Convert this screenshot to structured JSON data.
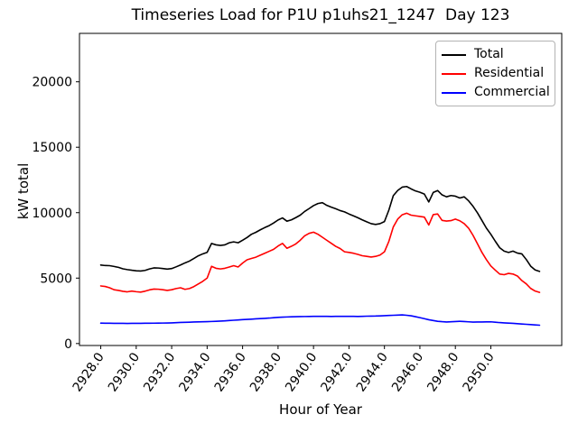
{
  "title": "Timeseries Load for P1U p1uhs21_1247  Day 123",
  "colors": {
    "background": "#ffffff",
    "axis": "#000000",
    "tick_text": "#000000",
    "legend_border": "#b3b3b3",
    "total_line": "#000000",
    "residential_line": "#ff0000",
    "commercial_line": "#0000ff"
  },
  "chart_data": {
    "type": "line",
    "title": "Timeseries Load for P1U p1uhs21_1247  Day 123",
    "xlabel": "Hour of Year",
    "ylabel": "kW total",
    "grid": false,
    "legend_position": "upper right",
    "xlim": [
      2926.8,
      2954.0
    ],
    "ylim": [
      -150,
      23700
    ],
    "xticks": [
      2928,
      2930,
      2932,
      2934,
      2936,
      2938,
      2940,
      2942,
      2944,
      2946,
      2948,
      2950
    ],
    "xtick_labels": [
      "2928.0",
      "2930.0",
      "2932.0",
      "2934.0",
      "2936.0",
      "2938.0",
      "2940.0",
      "2942.0",
      "2944.0",
      "2946.0",
      "2948.0",
      "2950.0"
    ],
    "yticks": [
      0,
      5000,
      10000,
      15000,
      20000
    ],
    "ytick_labels": [
      "0",
      "5000",
      "10000",
      "15000",
      "20000"
    ],
    "xtick_rotation_deg": -55,
    "x": [
      2928.0,
      2928.25,
      2928.5,
      2928.75,
      2929.0,
      2929.25,
      2929.5,
      2929.75,
      2930.0,
      2930.25,
      2930.5,
      2930.75,
      2931.0,
      2931.25,
      2931.5,
      2931.75,
      2932.0,
      2932.25,
      2932.5,
      2932.75,
      2933.0,
      2933.25,
      2933.5,
      2933.75,
      2934.0,
      2934.25,
      2934.5,
      2934.75,
      2935.0,
      2935.25,
      2935.5,
      2935.75,
      2936.0,
      2936.25,
      2936.5,
      2936.75,
      2937.0,
      2937.25,
      2937.5,
      2937.75,
      2938.0,
      2938.25,
      2938.5,
      2938.75,
      2939.0,
      2939.25,
      2939.5,
      2939.75,
      2940.0,
      2940.25,
      2940.5,
      2940.75,
      2941.0,
      2941.25,
      2941.5,
      2941.75,
      2942.0,
      2942.25,
      2942.5,
      2942.75,
      2943.0,
      2943.25,
      2943.5,
      2943.75,
      2944.0,
      2944.25,
      2944.5,
      2944.75,
      2945.0,
      2945.25,
      2945.5,
      2945.75,
      2946.0,
      2946.25,
      2946.5,
      2946.75,
      2947.0,
      2947.25,
      2947.5,
      2947.75,
      2948.0,
      2948.25,
      2948.5,
      2948.75,
      2949.0,
      2949.25,
      2949.5,
      2949.75,
      2950.0,
      2950.25,
      2950.5,
      2950.75,
      2951.0,
      2951.25,
      2951.5,
      2951.75,
      2952.0,
      2952.25,
      2952.5,
      2952.75
    ],
    "series": [
      {
        "name": "Total",
        "color": "#000000",
        "values": [
          6000,
          5960,
          5950,
          5890,
          5820,
          5710,
          5650,
          5600,
          5560,
          5540,
          5590,
          5700,
          5780,
          5770,
          5730,
          5690,
          5730,
          5860,
          6000,
          6160,
          6300,
          6500,
          6700,
          6850,
          6970,
          7650,
          7540,
          7500,
          7540,
          7700,
          7770,
          7700,
          7890,
          8100,
          8350,
          8500,
          8690,
          8860,
          9010,
          9210,
          9440,
          9600,
          9350,
          9450,
          9620,
          9810,
          10090,
          10310,
          10540,
          10700,
          10760,
          10560,
          10420,
          10300,
          10160,
          10060,
          9900,
          9760,
          9610,
          9450,
          9300,
          9160,
          9100,
          9160,
          9320,
          10200,
          11300,
          11700,
          11950,
          12000,
          11820,
          11660,
          11560,
          11420,
          10820,
          11540,
          11690,
          11360,
          11210,
          11310,
          11260,
          11120,
          11210,
          10900,
          10480,
          9980,
          9400,
          8820,
          8350,
          7820,
          7320,
          7060,
          6960,
          7060,
          6910,
          6850,
          6420,
          5910,
          5620,
          5510
        ]
      },
      {
        "name": "Residential",
        "color": "#ff0000",
        "values": [
          4400,
          4360,
          4260,
          4110,
          4060,
          3990,
          3950,
          4010,
          3960,
          3930,
          4000,
          4100,
          4160,
          4150,
          4110,
          4060,
          4110,
          4200,
          4260,
          4140,
          4200,
          4350,
          4550,
          4750,
          5000,
          5900,
          5750,
          5700,
          5750,
          5850,
          5950,
          5850,
          6150,
          6400,
          6500,
          6600,
          6750,
          6900,
          7050,
          7200,
          7450,
          7650,
          7280,
          7430,
          7610,
          7890,
          8230,
          8420,
          8510,
          8350,
          8120,
          7890,
          7660,
          7430,
          7260,
          7010,
          6960,
          6900,
          6810,
          6710,
          6660,
          6610,
          6660,
          6760,
          7010,
          7810,
          8910,
          9510,
          9840,
          9960,
          9810,
          9760,
          9710,
          9660,
          9060,
          9850,
          9900,
          9410,
          9360,
          9390,
          9510,
          9380,
          9160,
          8810,
          8260,
          7610,
          6960,
          6410,
          5930,
          5610,
          5310,
          5260,
          5360,
          5310,
          5160,
          4810,
          4560,
          4210,
          4010,
          3910
        ]
      },
      {
        "name": "Commercial",
        "color": "#0000ff",
        "values": [
          1560,
          1550,
          1550,
          1545,
          1540,
          1540,
          1535,
          1540,
          1540,
          1545,
          1550,
          1550,
          1555,
          1560,
          1565,
          1570,
          1580,
          1595,
          1610,
          1620,
          1630,
          1645,
          1655,
          1665,
          1675,
          1685,
          1700,
          1715,
          1735,
          1760,
          1780,
          1800,
          1825,
          1845,
          1865,
          1885,
          1905,
          1925,
          1945,
          1975,
          2000,
          2015,
          2030,
          2040,
          2050,
          2060,
          2065,
          2070,
          2075,
          2080,
          2080,
          2075,
          2070,
          2075,
          2080,
          2080,
          2080,
          2075,
          2070,
          2080,
          2090,
          2095,
          2100,
          2115,
          2130,
          2145,
          2160,
          2175,
          2190,
          2160,
          2120,
          2050,
          1980,
          1900,
          1820,
          1760,
          1700,
          1670,
          1650,
          1665,
          1680,
          1700,
          1680,
          1660,
          1640,
          1645,
          1650,
          1655,
          1660,
          1630,
          1600,
          1580,
          1560,
          1540,
          1520,
          1495,
          1470,
          1445,
          1420,
          1400
        ]
      }
    ]
  },
  "legend": {
    "entries": [
      {
        "label": "Total"
      },
      {
        "label": "Residential"
      },
      {
        "label": "Commercial"
      }
    ]
  }
}
